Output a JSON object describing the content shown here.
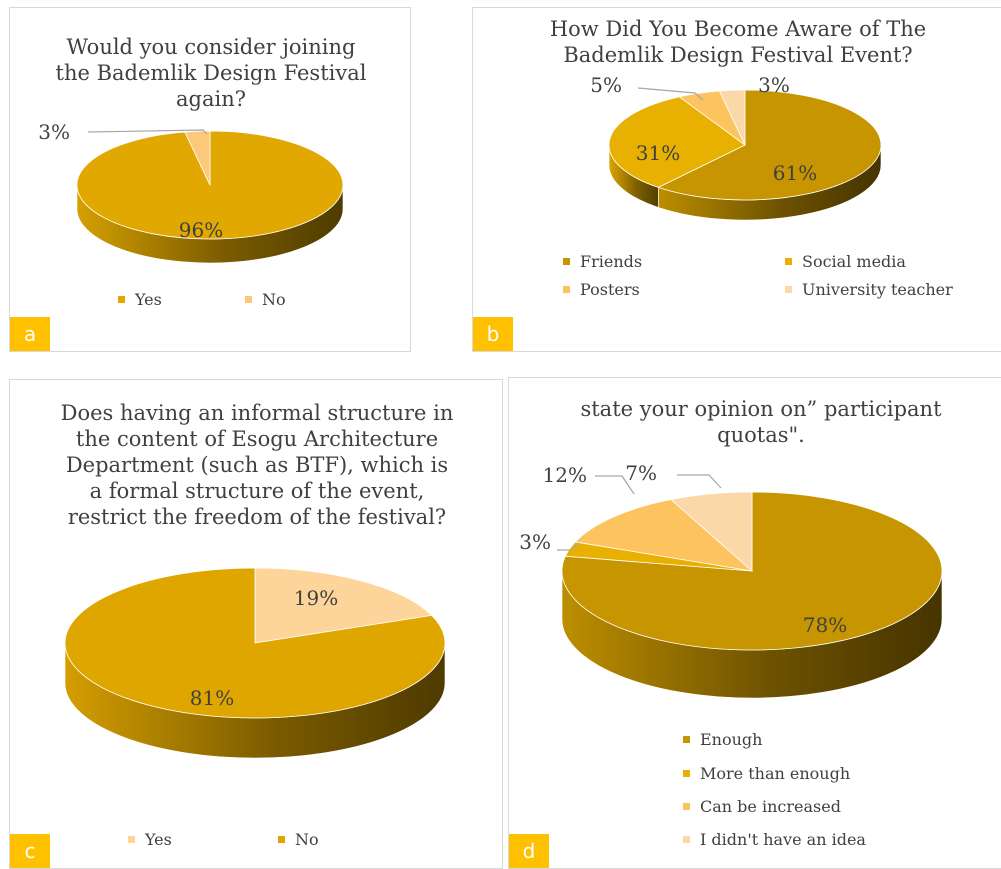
{
  "chart_data": [
    {
      "panel": "a",
      "type": "pie",
      "title": "Would you consider joining the Bademlik Design Festival again?",
      "title_lines": [
        "Would you consider joining",
        "the Bademlik Design Festival",
        "again?"
      ],
      "categories": [
        "Yes",
        "No"
      ],
      "values": [
        96,
        3
      ],
      "value_labels": [
        "96%",
        "3%"
      ],
      "colors": [
        "#e0a800",
        "#fcc87a"
      ],
      "legend": "bottom"
    },
    {
      "panel": "b",
      "type": "pie",
      "title": "How Did You Become Aware of The Bademlik Design Festival Event?",
      "title_lines": [
        "How Did You Become Aware of The",
        "Bademlik Design Festival Event?"
      ],
      "categories": [
        "Friends",
        "Social media",
        "Posters",
        "University teacher"
      ],
      "values": [
        61,
        31,
        5,
        3
      ],
      "value_labels": [
        "61%",
        "31%",
        "5%",
        "3%"
      ],
      "colors": [
        "#c79500",
        "#e8b000",
        "#fcc35e",
        "#fbd8a8"
      ],
      "legend": "bottom"
    },
    {
      "panel": "c",
      "type": "pie",
      "title": "Does having an informal structure in the content of Esogu Architecture Department (such as BTF), which is a formal structure of the event, restrict the freedom of the festival?",
      "title_lines": [
        "Does having an informal structure in",
        "the content of Esogu Architecture",
        "Department (such as BTF), which is",
        "a formal structure of the event,",
        "restrict the freedom of the festival?"
      ],
      "categories": [
        "Yes",
        "No"
      ],
      "values": [
        19,
        81
      ],
      "value_labels": [
        "19%",
        "81%"
      ],
      "colors": [
        "#fdd49a",
        "#dfa600"
      ],
      "legend": "bottom"
    },
    {
      "panel": "d",
      "type": "pie",
      "title": "state your opinion on” participant quotas\".",
      "title_lines": [
        "state your opinion on” participant",
        "quotas\"."
      ],
      "categories": [
        "Enough",
        "More than enough",
        "Can be increased",
        "I didn't have an idea"
      ],
      "values": [
        78,
        3,
        12,
        7
      ],
      "value_labels": [
        "78%",
        "3%",
        "12%",
        "7%"
      ],
      "colors": [
        "#c79500",
        "#e8b000",
        "#fcc35e",
        "#fbd8a8"
      ],
      "legend": "bottom"
    }
  ],
  "panels": [
    {
      "tag": "a",
      "legend": [
        "Yes",
        "No"
      ],
      "legend_colors": [
        "#e0a800",
        "#fcc87a"
      ]
    },
    {
      "tag": "b",
      "legend": [
        "Friends",
        "Social media",
        "Posters",
        "University teacher"
      ],
      "legend_colors": [
        "#c79500",
        "#e8b000",
        "#fcc35e",
        "#fbd8a8"
      ]
    },
    {
      "tag": "c",
      "legend": [
        "Yes",
        "No"
      ],
      "legend_colors": [
        "#fdd49a",
        "#dfa600"
      ]
    },
    {
      "tag": "d",
      "legend": [
        "Enough",
        "More than enough",
        "Can be increased",
        "I didn't have an idea"
      ],
      "legend_colors": [
        "#c79500",
        "#e8b000",
        "#fcc35e",
        "#fbd8a8"
      ]
    }
  ]
}
